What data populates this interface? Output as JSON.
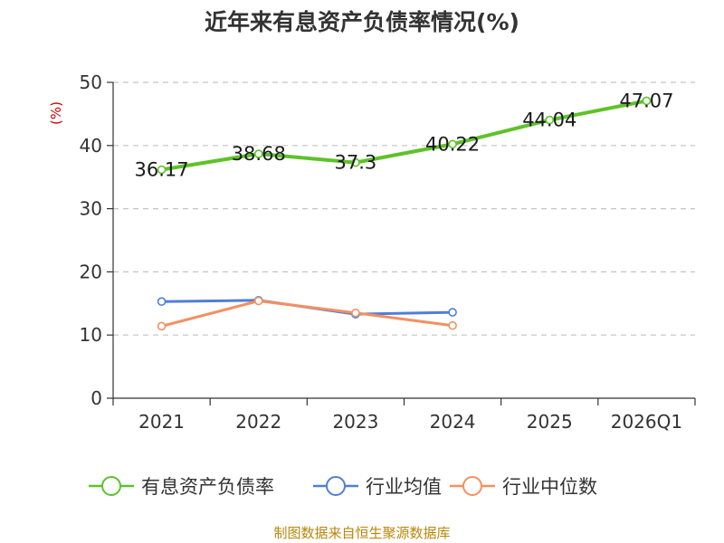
{
  "chart_data": {
    "type": "line",
    "title": "近年来有息资产负债率情况(%)",
    "ylabel": "(%)",
    "xlabel": "",
    "ylim": [
      0,
      50
    ],
    "yticks": [
      0,
      10,
      20,
      30,
      40,
      50
    ],
    "grid": true,
    "legend_position": "bottom",
    "categories": [
      "2021",
      "2022",
      "2023",
      "2024",
      "2025",
      "2026Q1"
    ],
    "series": [
      {
        "name": "有息资产负债率",
        "color": "#5ec22a",
        "values": [
          36.17,
          38.68,
          37.3,
          40.22,
          44.04,
          47.07
        ],
        "labels": [
          "36.17",
          "38.68",
          "37.3",
          "40.22",
          "44.04",
          "47.07"
        ]
      },
      {
        "name": "行业均值",
        "color": "#4f7fd9",
        "values": [
          15.3,
          15.5,
          13.3,
          13.6,
          null,
          null
        ]
      },
      {
        "name": "行业中位数",
        "color": "#f39060",
        "values": [
          11.4,
          15.4,
          13.5,
          11.5,
          null,
          null
        ]
      }
    ],
    "source": "制图数据来自恒生聚源数据库"
  }
}
